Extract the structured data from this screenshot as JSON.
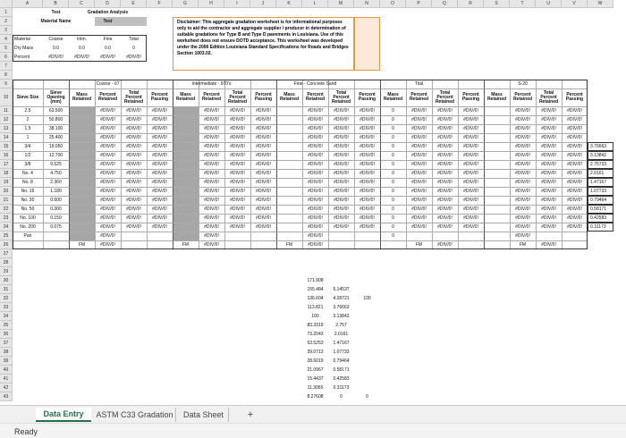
{
  "column_letters": [
    "A",
    "B",
    "C",
    "D",
    "E",
    "F",
    "G",
    "H",
    "I",
    "J",
    "K",
    "L",
    "M",
    "N",
    "O",
    "P",
    "Q",
    "R",
    "S",
    "T",
    "U",
    "V",
    "W"
  ],
  "row_numbers": [
    1,
    2,
    3,
    4,
    5,
    6,
    7,
    8,
    9,
    10,
    11,
    12,
    13,
    14,
    15,
    16,
    17,
    18,
    19,
    20,
    21,
    22,
    23,
    24,
    25,
    26,
    27,
    28,
    29,
    30,
    31,
    32,
    33,
    34,
    35,
    36,
    37,
    38,
    39,
    40,
    41,
    42,
    43
  ],
  "rows": [
    [
      null,
      "Test",
      null,
      "Gradation Analysis"
    ],
    [
      null,
      "Material Name",
      null,
      "Test"
    ],
    [],
    [
      "Material",
      "Coarse",
      "Intm.",
      "Fine",
      "Total"
    ],
    [
      "Dry Mass",
      "0.0",
      "0.0",
      "0.0",
      "0"
    ],
    [
      "Percent",
      "#DIV/0!",
      "#DIV/0!",
      "#DIV/0!",
      "#DIV/0!"
    ],
    [],
    [],
    [
      null,
      null,
      null,
      "Coarse - 67",
      null,
      null,
      null,
      "Intermediate - 970's",
      null,
      null,
      null,
      "Fine - Concrete Sand",
      null,
      null,
      null,
      "Trial",
      null,
      null,
      null,
      "S-20"
    ],
    [
      "Sieve Size",
      "Sieve Opening (mm)",
      "Mass Retained",
      "Percent Retained",
      "Total Percent Retained",
      "Percent Passing",
      "Mass Retained",
      "Percent Retained",
      "Total Percent Retained",
      "Percent Passing",
      "Mass Retained",
      "Percent Retained",
      "Total Percent Retained",
      "Percent Passing",
      "Mass Retained",
      "Percent Retained",
      "Total Percent Retained",
      "Percent Passing",
      "Mass Retained",
      "Percent Retained",
      "Total Percent Retained",
      "Percent Passing"
    ],
    [
      "2.5",
      "63.500",
      null,
      "#DIV/0!",
      "#DIV/0!",
      "#DIV/0!",
      null,
      "#DIV/0!",
      "#DIV/0!",
      "#DIV/0!",
      null,
      "#DIV/0!",
      "#DIV/0!",
      "#DIV/0!",
      "0",
      "#DIV/0!",
      "#DIV/0!",
      "#DIV/0!",
      null,
      "#DIV/0!",
      "#DIV/0!",
      "#DIV/0!"
    ],
    [
      "2",
      "50.800",
      null,
      "#DIV/0!",
      "#DIV/0!",
      "#DIV/0!",
      null,
      "#DIV/0!",
      "#DIV/0!",
      "#DIV/0!",
      null,
      "#DIV/0!",
      "#DIV/0!",
      "#DIV/0!",
      "0",
      "#DIV/0!",
      "#DIV/0!",
      "#DIV/0!",
      null,
      "#DIV/0!",
      "#DIV/0!",
      "#DIV/0!"
    ],
    [
      "1.5",
      "38.100",
      null,
      "#DIV/0!",
      "#DIV/0!",
      "#DIV/0!",
      null,
      "#DIV/0!",
      "#DIV/0!",
      "#DIV/0!",
      null,
      "#DIV/0!",
      "#DIV/0!",
      "#DIV/0!",
      "0",
      "#DIV/0!",
      "#DIV/0!",
      "#DIV/0!",
      null,
      "#DIV/0!",
      "#DIV/0!",
      "#DIV/0!"
    ],
    [
      "1",
      "25.400",
      null,
      "#DIV/0!",
      "#DIV/0!",
      "#DIV/0!",
      null,
      "#DIV/0!",
      "#DIV/0!",
      "#DIV/0!",
      null,
      "#DIV/0!",
      "#DIV/0!",
      "#DIV/0!",
      "0",
      "#DIV/0!",
      "#DIV/0!",
      "#DIV/0!",
      null,
      "#DIV/0!",
      "#DIV/0!",
      "#DIV/0!"
    ],
    [
      "3/4",
      "19.050",
      null,
      "#DIV/0!",
      "#DIV/0!",
      "#DIV/0!",
      null,
      "#DIV/0!",
      "#DIV/0!",
      "#DIV/0!",
      null,
      "#DIV/0!",
      "#DIV/0!",
      "#DIV/0!",
      "0",
      "#DIV/0!",
      "#DIV/0!",
      "#DIV/0!",
      null,
      "#DIV/0!",
      "#DIV/0!",
      "#DIV/0!",
      "3.76663"
    ],
    [
      "1/2",
      "12.700",
      null,
      "#DIV/0!",
      "#DIV/0!",
      "#DIV/0!",
      null,
      "#DIV/0!",
      "#DIV/0!",
      "#DIV/0!",
      null,
      "#DIV/0!",
      "#DIV/0!",
      "#DIV/0!",
      "0",
      "#DIV/0!",
      "#DIV/0!",
      "#DIV/0!",
      null,
      "#DIV/0!",
      "#DIV/0!",
      "#DIV/0!",
      "3.13842"
    ],
    [
      "3/8",
      "9.525",
      null,
      "#DIV/0!",
      "#DIV/0!",
      "#DIV/0!",
      null,
      "#DIV/0!",
      "#DIV/0!",
      "#DIV/0!",
      null,
      "#DIV/0!",
      "#DIV/0!",
      "#DIV/0!",
      "0",
      "#DIV/0!",
      "#DIV/0!",
      "#DIV/0!",
      null,
      "#DIV/0!",
      "#DIV/0!",
      "#DIV/0!",
      "2.75733"
    ],
    [
      "No. 4",
      "4.750",
      null,
      "#DIV/0!",
      "#DIV/0!",
      "#DIV/0!",
      null,
      "#DIV/0!",
      "#DIV/0!",
      "#DIV/0!",
      null,
      "#DIV/0!",
      "#DIV/0!",
      "#DIV/0!",
      "0",
      "#DIV/0!",
      "#DIV/0!",
      "#DIV/0!",
      null,
      "#DIV/0!",
      "#DIV/0!",
      "#DIV/0!",
      "2.0161"
    ],
    [
      "No. 8",
      "2.360",
      null,
      "#DIV/0!",
      "#DIV/0!",
      "#DIV/0!",
      null,
      "#DIV/0!",
      "#DIV/0!",
      "#DIV/0!",
      null,
      "#DIV/0!",
      "#DIV/0!",
      "#DIV/0!",
      "0",
      "#DIV/0!",
      "#DIV/0!",
      "#DIV/0!",
      null,
      "#DIV/0!",
      "#DIV/0!",
      "#DIV/0!",
      "1.47167"
    ],
    [
      "No. 16",
      "1.180",
      null,
      "#DIV/0!",
      "#DIV/0!",
      "#DIV/0!",
      null,
      "#DIV/0!",
      "#DIV/0!",
      "#DIV/0!",
      null,
      "#DIV/0!",
      "#DIV/0!",
      "#DIV/0!",
      "0",
      "#DIV/0!",
      "#DIV/0!",
      "#DIV/0!",
      null,
      "#DIV/0!",
      "#DIV/0!",
      "#DIV/0!",
      "1.07733"
    ],
    [
      "No. 30",
      "0.600",
      null,
      "#DIV/0!",
      "#DIV/0!",
      "#DIV/0!",
      null,
      "#DIV/0!",
      "#DIV/0!",
      "#DIV/0!",
      null,
      "#DIV/0!",
      "#DIV/0!",
      "#DIV/0!",
      "0",
      "#DIV/0!",
      "#DIV/0!",
      "#DIV/0!",
      null,
      "#DIV/0!",
      "#DIV/0!",
      "#DIV/0!",
      "0.79464"
    ],
    [
      "No. 50",
      "0.300",
      null,
      "#DIV/0!",
      "#DIV/0!",
      "#DIV/0!",
      null,
      "#DIV/0!",
      "#DIV/0!",
      "#DIV/0!",
      null,
      "#DIV/0!",
      "#DIV/0!",
      "#DIV/0!",
      "0",
      "#DIV/0!",
      "#DIV/0!",
      "#DIV/0!",
      null,
      "#DIV/0!",
      "#DIV/0!",
      "#DIV/0!",
      "0.58171"
    ],
    [
      "No. 100",
      "0.150",
      null,
      "#DIV/0!",
      "#DIV/0!",
      "#DIV/0!",
      null,
      "#DIV/0!",
      "#DIV/0!",
      "#DIV/0!",
      null,
      "#DIV/0!",
      "#DIV/0!",
      "#DIV/0!",
      "0",
      "#DIV/0!",
      "#DIV/0!",
      "#DIV/0!",
      null,
      "#DIV/0!",
      "#DIV/0!",
      "#DIV/0!",
      "0.42583"
    ],
    [
      "No. 200",
      "0.075",
      null,
      "#DIV/0!",
      "#DIV/0!",
      "#DIV/0!",
      null,
      "#DIV/0!",
      "#DIV/0!",
      "#DIV/0!",
      null,
      "#DIV/0!",
      "#DIV/0!",
      "#DIV/0!",
      "0",
      "#DIV/0!",
      "#DIV/0!",
      "#DIV/0!",
      null,
      "#DIV/0!",
      "#DIV/0!",
      "#DIV/0!",
      "0.31173"
    ],
    [
      "Pan",
      null,
      null,
      "#DIV/0!",
      null,
      null,
      null,
      "#DIV/0!",
      null,
      null,
      null,
      "#DIV/0!",
      null,
      null,
      "0",
      null,
      null,
      null,
      null,
      "#DIV/0!"
    ],
    [
      null,
      null,
      "FM",
      "#DIV/0!",
      null,
      null,
      "FM",
      "#DIV/0!",
      null,
      null,
      "FM",
      "#DIV/0!",
      null,
      null,
      null,
      "FM",
      "#DIV/0!",
      null,
      null,
      "FM",
      "#DIV/0!"
    ],
    [],
    [],
    [],
    [
      null,
      null,
      null,
      null,
      null,
      null,
      null,
      null,
      null,
      null,
      null,
      "171.908"
    ],
    [
      null,
      null,
      null,
      null,
      null,
      null,
      null,
      null,
      null,
      null,
      null,
      "155.484",
      "5.14537"
    ],
    [
      null,
      null,
      null,
      null,
      null,
      null,
      null,
      null,
      null,
      null,
      null,
      "136.604",
      "4.28721",
      "100"
    ],
    [
      null,
      null,
      null,
      null,
      null,
      null,
      null,
      null,
      null,
      null,
      null,
      "113.821",
      "3.76663"
    ],
    [
      null,
      null,
      null,
      null,
      null,
      null,
      null,
      null,
      null,
      null,
      null,
      "100",
      "3.13842"
    ],
    [
      null,
      null,
      null,
      null,
      null,
      null,
      null,
      null,
      null,
      null,
      null,
      "83.3319",
      "2.757"
    ],
    [
      null,
      null,
      null,
      null,
      null,
      null,
      null,
      null,
      null,
      null,
      null,
      "73.2043",
      "2.0161"
    ],
    [
      null,
      null,
      null,
      null,
      null,
      null,
      null,
      null,
      null,
      null,
      null,
      "53.5253",
      "1.47167"
    ],
    [
      null,
      null,
      null,
      null,
      null,
      null,
      null,
      null,
      null,
      null,
      null,
      "39.0713",
      "1.07733"
    ],
    [
      null,
      null,
      null,
      null,
      null,
      null,
      null,
      null,
      null,
      null,
      null,
      "28.6019",
      "0.79464"
    ],
    [
      null,
      null,
      null,
      null,
      null,
      null,
      null,
      null,
      null,
      null,
      null,
      "21.0967",
      "0.58171"
    ],
    [
      null,
      null,
      null,
      null,
      null,
      null,
      null,
      null,
      null,
      null,
      null,
      "15.4437",
      "0.42583"
    ],
    [
      null,
      null,
      null,
      null,
      null,
      null,
      null,
      null,
      null,
      null,
      null,
      "11.3055",
      "0.31173"
    ],
    [
      null,
      null,
      null,
      null,
      null,
      null,
      null,
      null,
      null,
      null,
      null,
      "8.27608",
      "0",
      "0"
    ]
  ],
  "disclaimer": "Disclaimer: This aggregate gradation worksheet is for informational purposes only to aid the contractor and aggregate supplier / producer in determination of suitable gradations for Type B and Type D pavements in Louisiana. Use of this worksheet does not ensure DOTD acceptance. This worksheet was developed under the 2006 Edition Louisiana Standard Specifications for Roads and Bridges Section 1003.02.",
  "sheet_tabs": [
    "Data Entry",
    "ASTM C33 Gradation",
    "Data Sheet"
  ],
  "add_sheet": "+",
  "status": "Ready"
}
